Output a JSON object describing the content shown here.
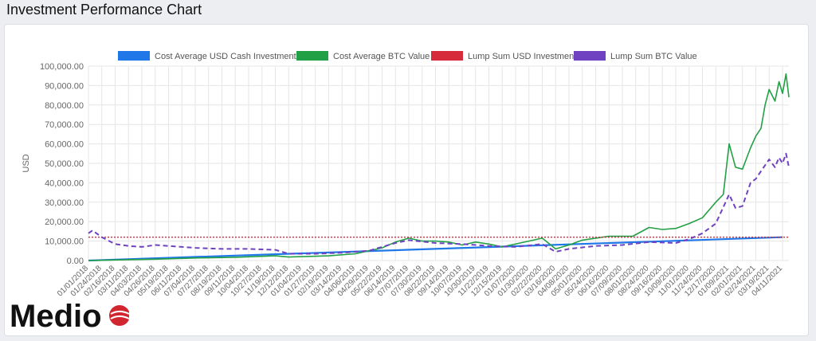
{
  "page": {
    "title": "Investment Performance Chart"
  },
  "logo": {
    "text": "Medio"
  },
  "colors": {
    "cost_avg_usd": "#1f77e8",
    "cost_avg_btc": "#22a045",
    "lump_usd": "#d62b3a",
    "lump_btc": "#6f42c1",
    "grid": "#e6e6e6",
    "tick": "#666666"
  },
  "chart_data": {
    "type": "line",
    "title": "",
    "xlabel": "",
    "ylabel": "USD",
    "ylim": [
      0,
      100000
    ],
    "grid": true,
    "legend_position": "top",
    "y_ticks": [
      "0.00",
      "10,000.00",
      "20,000.00",
      "30,000.00",
      "40,000.00",
      "50,000.00",
      "60,000.00",
      "70,000.00",
      "80,000.00",
      "90,000.00",
      "100,000.00"
    ],
    "x_tick_labels": [
      "01/01/2018",
      "01/24/2018",
      "02/16/2018",
      "03/11/2018",
      "04/03/2018",
      "04/26/2018",
      "05/19/2018",
      "06/11/2018",
      "07/04/2018",
      "07/27/2018",
      "08/19/2018",
      "09/11/2018",
      "10/04/2018",
      "10/27/2018",
      "11/19/2018",
      "12/12/2018",
      "01/04/2019",
      "01/27/2019",
      "02/19/2019",
      "03/14/2019",
      "04/06/2019",
      "04/29/2019",
      "05/22/2019",
      "06/14/2019",
      "07/07/2019",
      "07/30/2019",
      "08/22/2019",
      "09/14/2019",
      "10/07/2019",
      "10/30/2019",
      "11/22/2019",
      "12/15/2019",
      "01/07/2020",
      "01/30/2020",
      "02/22/2020",
      "03/16/2020",
      "04/08/2020",
      "05/01/2020",
      "05/24/2020",
      "06/16/2020",
      "07/09/2020",
      "08/01/2020",
      "08/24/2020",
      "09/16/2020",
      "10/09/2020",
      "11/01/2020",
      "11/24/2020",
      "12/17/2020",
      "01/09/2021",
      "02/01/2021",
      "02/24/2021",
      "03/19/2021",
      "04/11/2021"
    ],
    "series": [
      {
        "name": "Cost Average USD Cash Investment",
        "style": "solid",
        "x": [
          "01/01/2018",
          "04/11/2021"
        ],
        "values": [
          0,
          12000
        ]
      },
      {
        "name": "Cost Average BTC Value",
        "style": "solid",
        "x": [
          "01/01/2018",
          "02/16/2018",
          "04/26/2018",
          "07/04/2018",
          "09/11/2018",
          "11/19/2018",
          "12/12/2018",
          "01/04/2019",
          "02/19/2019",
          "04/06/2019",
          "05/22/2019",
          "06/14/2019",
          "07/07/2019",
          "07/30/2019",
          "08/22/2019",
          "09/14/2019",
          "10/07/2019",
          "10/30/2019",
          "11/22/2019",
          "12/15/2019",
          "01/30/2020",
          "02/22/2020",
          "03/16/2020",
          "04/08/2020",
          "05/01/2020",
          "06/16/2020",
          "07/27/2020",
          "08/24/2020",
          "09/16/2020",
          "10/09/2020",
          "11/01/2020",
          "11/24/2020",
          "12/17/2020",
          "12/30/2020",
          "01/09/2021",
          "01/20/2021",
          "02/01/2021",
          "02/15/2021",
          "02/24/2021",
          "03/05/2021",
          "03/12/2021",
          "03/19/2021",
          "03/29/2021",
          "04/05/2021",
          "04/11/2021",
          "04/17/2021",
          "04/22/2021"
        ],
        "values": [
          0,
          300,
          700,
          1300,
          1700,
          2400,
          1800,
          2000,
          2400,
          3500,
          6500,
          9500,
          11500,
          10000,
          10000,
          9500,
          8000,
          9500,
          8500,
          7000,
          10000,
          11500,
          6000,
          8000,
          10500,
          12500,
          12500,
          17000,
          16000,
          16500,
          19000,
          22000,
          30000,
          34000,
          60000,
          48000,
          47000,
          58000,
          64000,
          68000,
          80000,
          88000,
          82000,
          92000,
          86000,
          96000,
          84000
        ]
      },
      {
        "name": "Lump Sum USD Investment",
        "style": "dotted",
        "x": [
          "01/01/2018",
          "04/22/2021"
        ],
        "values": [
          12000,
          12000
        ]
      },
      {
        "name": "Lump Sum BTC Value",
        "style": "dashed",
        "x": [
          "01/01/2018",
          "01/08/2018",
          "01/24/2018",
          "02/16/2018",
          "03/11/2018",
          "04/03/2018",
          "04/26/2018",
          "05/19/2018",
          "07/04/2018",
          "08/19/2018",
          "10/04/2018",
          "11/19/2018",
          "12/12/2018",
          "01/27/2019",
          "03/14/2019",
          "04/29/2019",
          "06/14/2019",
          "07/07/2019",
          "08/22/2019",
          "10/07/2019",
          "11/22/2019",
          "01/07/2020",
          "02/22/2020",
          "03/16/2020",
          "04/08/2020",
          "05/24/2020",
          "07/09/2020",
          "08/24/2020",
          "10/09/2020",
          "11/01/2020",
          "11/24/2020",
          "12/17/2020",
          "01/09/2021",
          "01/20/2021",
          "02/01/2021",
          "02/15/2021",
          "02/24/2021",
          "03/05/2021",
          "03/19/2021",
          "03/29/2021",
          "04/05/2021",
          "04/11/2021",
          "04/17/2021",
          "04/22/2021"
        ],
        "values": [
          14000,
          15500,
          12000,
          8500,
          7500,
          7000,
          8000,
          7500,
          6500,
          6000,
          6000,
          5500,
          3500,
          3500,
          4000,
          5000,
          9000,
          10500,
          9000,
          8500,
          7500,
          7000,
          8500,
          4500,
          6000,
          7500,
          8000,
          9500,
          9000,
          11000,
          14000,
          19000,
          34000,
          27000,
          28000,
          40000,
          42000,
          46000,
          52000,
          48000,
          53000,
          50000,
          55000,
          48000
        ]
      }
    ]
  }
}
